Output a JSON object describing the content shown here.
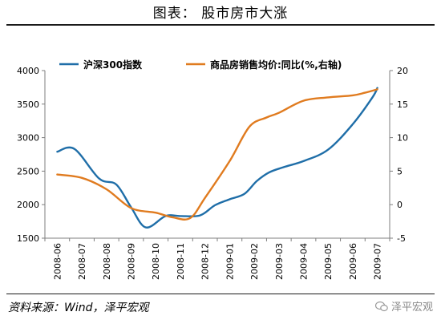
{
  "page": {
    "title": "图表： 股市房市大涨",
    "source": "资料来源：Wind，泽平宏观",
    "watermark": "泽平宏观",
    "watermark_icon": "wechat-icon"
  },
  "colors": {
    "series_1": "#1f6ea8",
    "series_2": "#e07b1f",
    "axis": "#7f7f7f",
    "rule": "#1a1a1a"
  },
  "chart_data": {
    "type": "line",
    "title": "",
    "xlabel": "",
    "ylabel": "",
    "grid": false,
    "legend_position": "top",
    "categories": [
      "2008-06",
      "2008-07",
      "2008-08",
      "2008-09",
      "2008-10",
      "2008-11",
      "2008-12",
      "2009-01",
      "2009-02",
      "2009-03",
      "2009-04",
      "2009-05",
      "2009-06",
      "2009-07"
    ],
    "y_left": {
      "min": 1500,
      "max": 4000,
      "ticks": [
        1500,
        2000,
        2500,
        3000,
        3500,
        4000
      ]
    },
    "y_right": {
      "min": -5,
      "max": 20,
      "ticks": [
        -5,
        0,
        5,
        10,
        15,
        20
      ]
    },
    "series": [
      {
        "name": "沪深300指数",
        "axis": "left",
        "points": [
          [
            0.0,
            2790
          ],
          [
            0.7,
            2830
          ],
          [
            1.7,
            2390
          ],
          [
            2.4,
            2300
          ],
          [
            3.0,
            1960
          ],
          [
            3.6,
            1660
          ],
          [
            4.4,
            1830
          ],
          [
            5.0,
            1830
          ],
          [
            5.8,
            1840
          ],
          [
            6.4,
            1990
          ],
          [
            7.0,
            2080
          ],
          [
            7.6,
            2160
          ],
          [
            8.1,
            2350
          ],
          [
            8.6,
            2480
          ],
          [
            9.2,
            2560
          ],
          [
            10.0,
            2650
          ],
          [
            11.0,
            2820
          ],
          [
            12.0,
            3200
          ],
          [
            12.8,
            3600
          ],
          [
            13.0,
            3740
          ]
        ]
      },
      {
        "name": "商品房销售均价:同比(%,右轴)",
        "axis": "right",
        "points": [
          [
            0.0,
            4.5
          ],
          [
            1.0,
            4.0
          ],
          [
            2.0,
            2.3
          ],
          [
            3.0,
            -0.5
          ],
          [
            4.0,
            -1.2
          ],
          [
            4.7,
            -1.9
          ],
          [
            5.4,
            -2.0
          ],
          [
            6.0,
            1.0
          ],
          [
            7.0,
            6.5
          ],
          [
            7.8,
            11.6
          ],
          [
            8.5,
            13.0
          ],
          [
            9.0,
            13.7
          ],
          [
            10.0,
            15.5
          ],
          [
            11.0,
            16.0
          ],
          [
            12.0,
            16.3
          ],
          [
            12.5,
            16.7
          ],
          [
            13.0,
            17.2
          ]
        ]
      }
    ]
  }
}
